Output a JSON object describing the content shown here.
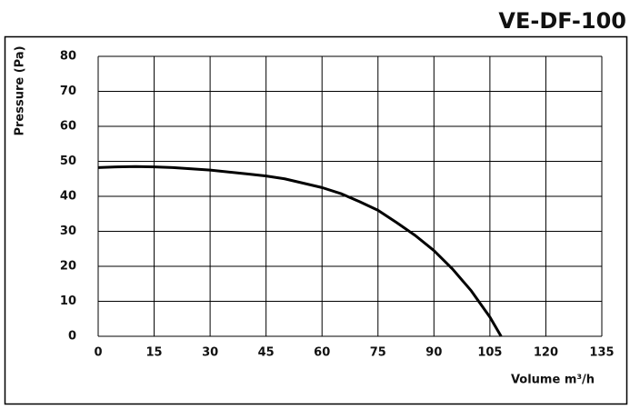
{
  "chart_data": {
    "type": "line",
    "title": "VE-DF-100",
    "x_label": "Volume m³/h",
    "y_label": "Pressure (Pa)",
    "x": [
      0,
      5,
      10,
      15,
      20,
      30,
      40,
      45,
      50,
      60,
      65,
      70,
      75,
      80,
      85,
      90,
      95,
      100,
      105,
      108
    ],
    "values": [
      48.2,
      48.4,
      48.5,
      48.4,
      48.2,
      47.5,
      46.4,
      45.8,
      45.0,
      42.5,
      40.8,
      38.5,
      36.0,
      32.5,
      28.8,
      24.5,
      19.2,
      13.0,
      5.5,
      0
    ],
    "color": "#000000",
    "xlim": [
      0,
      135
    ],
    "xticks": [
      0,
      15,
      30,
      45,
      60,
      75,
      90,
      105,
      120,
      135
    ],
    "ylim": [
      0,
      80
    ],
    "yticks": [
      0,
      10,
      20,
      30,
      40,
      50,
      60,
      70,
      80
    ],
    "grid": true
  }
}
